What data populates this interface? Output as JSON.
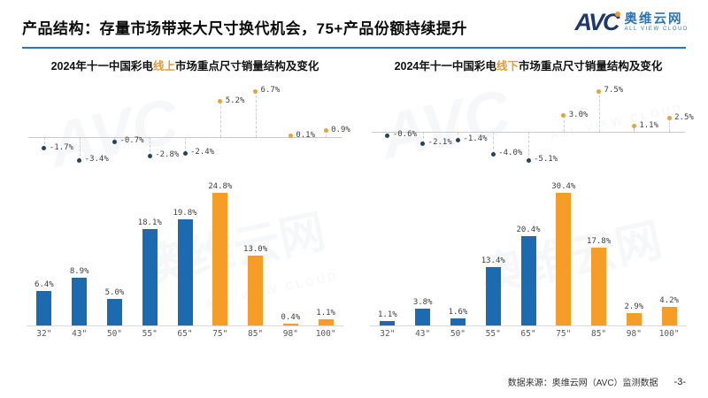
{
  "header": {
    "title": "产品结构：存量市场带来大尺寸换代机会，75+产品份额持续提升"
  },
  "logo": {
    "avc": "AVC",
    "cn": "奥维云网",
    "en": "ALL VIEW CLOUD"
  },
  "watermark": {
    "cn": "奥维云网",
    "avc": "AVC",
    "en": "ALL VIEW CLOUD"
  },
  "colors": {
    "bar_blue": "#1C6BB0",
    "bar_orange": "#F59D27",
    "dot_blue": "#1F4566",
    "dot_orange": "#E2A23E",
    "title_highlight": "#E29A38",
    "rule_blue": "#2E74B5",
    "axis_gray": "#C9C9C9"
  },
  "footer": {
    "source": "数据来源：奥维云网（AVC）监测数据",
    "page": "-3-"
  },
  "chart_data": [
    {
      "type": "bar",
      "subtype": "bar-share with scatter-change points",
      "title": "2024年十一中国彩电线上市场重点尺寸销量结构及变化",
      "title_prefix": "2024年十一中国彩电",
      "title_highlight": "线上",
      "title_suffix": "市场重点尺寸销量结构及变化",
      "categories": [
        "32\"",
        "43\"",
        "50\"",
        "55\"",
        "65\"",
        "75\"",
        "85\"",
        "98\"",
        "100\""
      ],
      "series": [
        {
          "name": "size_share_pct_bars",
          "values": [
            6.4,
            8.9,
            5.0,
            18.1,
            19.8,
            24.8,
            13.0,
            0.4,
            1.1
          ]
        },
        {
          "name": "share_change_pct_points",
          "values": [
            -1.7,
            -3.4,
            -0.7,
            -2.8,
            -2.4,
            5.2,
            6.7,
            0.1,
            0.9
          ]
        }
      ],
      "unit": "%",
      "highlight_from_index": 5,
      "axis_hidden": true,
      "legend": "none",
      "grid": false
    },
    {
      "type": "bar",
      "subtype": "bar-share with scatter-change points",
      "title": "2024年十一中国彩电线下市场重点尺寸销量结构及变化",
      "title_prefix": "2024年十一中国彩电",
      "title_highlight": "线下",
      "title_suffix": "市场重点尺寸销量结构及变化",
      "categories": [
        "32\"",
        "43\"",
        "50\"",
        "55\"",
        "65\"",
        "75\"",
        "85\"",
        "98\"",
        "100\""
      ],
      "series": [
        {
          "name": "size_share_pct_bars",
          "values": [
            1.1,
            3.8,
            1.6,
            13.4,
            20.4,
            30.4,
            17.8,
            2.9,
            4.2
          ]
        },
        {
          "name": "share_change_pct_points",
          "values": [
            -0.6,
            -2.1,
            -1.4,
            -4.0,
            -5.1,
            3.0,
            7.5,
            1.1,
            2.5
          ]
        }
      ],
      "unit": "%",
      "highlight_from_index": 5,
      "axis_hidden": true,
      "legend": "none",
      "grid": false
    }
  ]
}
